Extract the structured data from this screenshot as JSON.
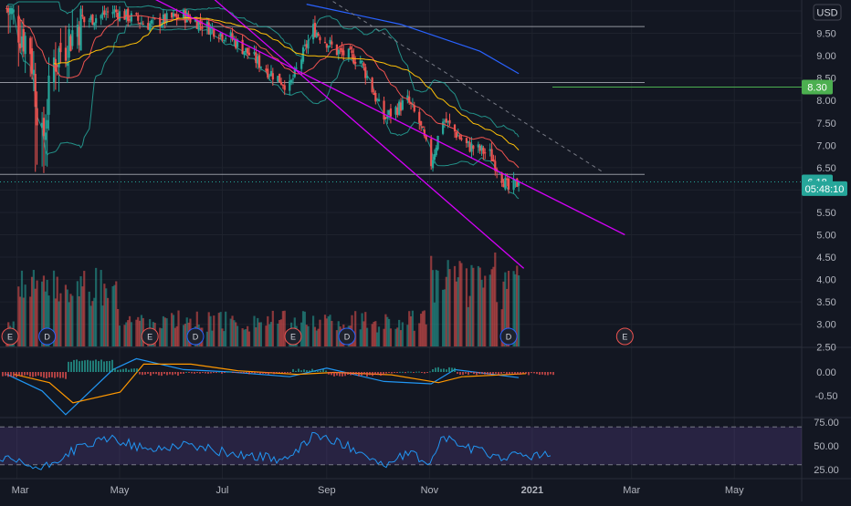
{
  "currency": "USD",
  "price_axis": {
    "ticks": [
      "10",
      "9.50",
      "9.00",
      "8.50",
      "8.00",
      "7.50",
      "7.00",
      "6.50",
      "6.00",
      "5.50",
      "5.00",
      "4.50",
      "4.00",
      "3.50",
      "3.00",
      "2.50"
    ],
    "badges": [
      {
        "label": "8.30",
        "value": 8.3,
        "color": "#4caf50"
      },
      {
        "label": "6.18",
        "value": 6.18,
        "color": "#26a69a"
      },
      {
        "label": "05:48:10",
        "value": 6.03,
        "color": "#26a69a"
      }
    ]
  },
  "macd_axis": {
    "ticks": [
      "0.00",
      "-0.50"
    ]
  },
  "rsi_axis": {
    "ticks": [
      "75.00",
      "50.00",
      "25.00"
    ]
  },
  "time_axis": {
    "labels": [
      "Mar",
      "May",
      "Jul",
      "Sep",
      "Nov",
      "2021",
      "Mar",
      "May"
    ]
  },
  "events": [
    {
      "type": "E"
    },
    {
      "type": "D"
    },
    {
      "type": "E"
    },
    {
      "type": "D"
    },
    {
      "type": "E"
    },
    {
      "type": "D"
    },
    {
      "type": "E"
    },
    {
      "type": "D"
    },
    {
      "type": "E"
    }
  ],
  "colors": {
    "background": "#131722",
    "up": "#26a69a",
    "down": "#ef5350",
    "channel": "#d500f9",
    "bollinger": "#26a69a",
    "ma_red": "#ef5350",
    "ma_yellow": "#ffc107",
    "ma_blue": "#2962ff",
    "macd_line": "#2196f3",
    "signal_line": "#ff9800",
    "rsi_line": "#2196f3",
    "rsi_band": "#7e57c2"
  },
  "chart_data": [
    {
      "type": "candlestick",
      "ylim": [
        2.5,
        10.1
      ],
      "key_levels": [
        9.65,
        8.4,
        6.35
      ],
      "price_path": [
        {
          "x": "2020-02-24",
          "y": 10.1
        },
        {
          "x": "2020-03-09",
          "y": 9.2
        },
        {
          "x": "2020-03-16",
          "y": 7.0
        },
        {
          "x": "2020-03-23",
          "y": 8.9
        },
        {
          "x": "2020-04-06",
          "y": 9.7
        },
        {
          "x": "2020-04-27",
          "y": 10.0
        },
        {
          "x": "2020-05-18",
          "y": 9.7
        },
        {
          "x": "2020-06-08",
          "y": 9.9
        },
        {
          "x": "2020-07-06",
          "y": 9.4
        },
        {
          "x": "2020-07-27",
          "y": 8.7
        },
        {
          "x": "2020-08-10",
          "y": 8.3
        },
        {
          "x": "2020-08-24",
          "y": 9.6
        },
        {
          "x": "2020-09-07",
          "y": 9.1
        },
        {
          "x": "2020-09-21",
          "y": 8.9
        },
        {
          "x": "2020-10-05",
          "y": 7.6
        },
        {
          "x": "2020-10-19",
          "y": 8.0
        },
        {
          "x": "2020-10-26",
          "y": 7.5
        },
        {
          "x": "2020-11-02",
          "y": 6.6
        },
        {
          "x": "2020-11-09",
          "y": 7.6
        },
        {
          "x": "2020-11-23",
          "y": 7.0
        },
        {
          "x": "2020-12-07",
          "y": 6.8
        },
        {
          "x": "2020-12-18",
          "y": 6.0
        },
        {
          "x": "2020-12-24",
          "y": 6.18
        }
      ],
      "last_price": 6.18
    },
    {
      "type": "bar",
      "name": "Volume",
      "note": "relative volume, spikes in Mar and Nov-Dec 2020"
    },
    {
      "type": "line",
      "name": "MACD",
      "ylim": [
        -0.9,
        0.35
      ],
      "values": [
        {
          "x": "2020-02-24",
          "y": -0.05
        },
        {
          "x": "2020-03-16",
          "y": -0.4
        },
        {
          "x": "2020-03-30",
          "y": -0.9
        },
        {
          "x": "2020-04-27",
          "y": 0.05
        },
        {
          "x": "2020-05-11",
          "y": 0.28
        },
        {
          "x": "2020-06-08",
          "y": 0.05
        },
        {
          "x": "2020-07-06",
          "y": 0.0
        },
        {
          "x": "2020-08-10",
          "y": -0.1
        },
        {
          "x": "2020-09-01",
          "y": 0.08
        },
        {
          "x": "2020-10-05",
          "y": -0.2
        },
        {
          "x": "2020-11-02",
          "y": -0.25
        },
        {
          "x": "2020-11-16",
          "y": 0.05
        },
        {
          "x": "2020-12-24",
          "y": -0.12
        }
      ]
    },
    {
      "type": "line",
      "name": "RSI",
      "ylim": [
        15,
        80
      ],
      "bands": [
        70,
        30
      ],
      "values": [
        {
          "x": "2020-02-24",
          "y": 35
        },
        {
          "x": "2020-03-16",
          "y": 25
        },
        {
          "x": "2020-04-06",
          "y": 48
        },
        {
          "x": "2020-04-27",
          "y": 58
        },
        {
          "x": "2020-05-18",
          "y": 45
        },
        {
          "x": "2020-06-08",
          "y": 52
        },
        {
          "x": "2020-07-06",
          "y": 42
        },
        {
          "x": "2020-08-10",
          "y": 35
        },
        {
          "x": "2020-08-24",
          "y": 62
        },
        {
          "x": "2020-09-21",
          "y": 45
        },
        {
          "x": "2020-10-05",
          "y": 28
        },
        {
          "x": "2020-10-19",
          "y": 42
        },
        {
          "x": "2020-11-02",
          "y": 32
        },
        {
          "x": "2020-11-09",
          "y": 60
        },
        {
          "x": "2020-11-23",
          "y": 48
        },
        {
          "x": "2020-12-14",
          "y": 38
        },
        {
          "x": "2020-12-24",
          "y": 40
        }
      ]
    }
  ]
}
